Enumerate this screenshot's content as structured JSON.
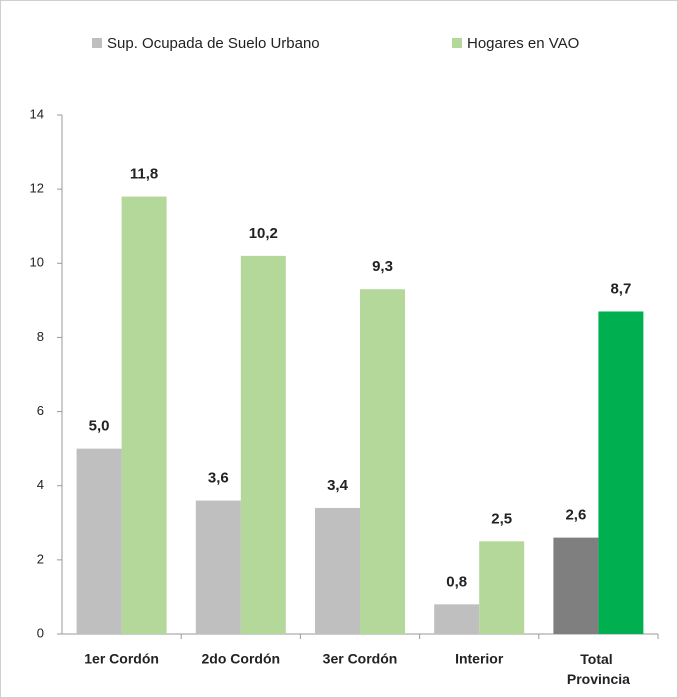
{
  "chart_data": {
    "type": "bar",
    "categories": [
      "1er Cordón",
      "2do Cordón",
      "3er Cordón",
      "Interior",
      "Total Provincia"
    ],
    "series": [
      {
        "name": "Sup. Ocupada de Suelo Urbano",
        "color": "#bfbfbf",
        "colors": [
          "#bfbfbf",
          "#bfbfbf",
          "#bfbfbf",
          "#bfbfbf",
          "#7f7f7f"
        ],
        "values": [
          5.0,
          3.6,
          3.4,
          0.8,
          2.6
        ],
        "value_labels": [
          "5,0",
          "3,6",
          "3,4",
          "0,8",
          "2,6"
        ]
      },
      {
        "name": "Hogares en VAO",
        "color": "#b3d89a",
        "colors": [
          "#b3d89a",
          "#b3d89a",
          "#b3d89a",
          "#b3d89a",
          "#00b050"
        ],
        "values": [
          11.8,
          10.2,
          9.3,
          2.5,
          8.7
        ],
        "value_labels": [
          "11,8",
          "10,2",
          "9,3",
          "2,5",
          "8,7"
        ]
      }
    ],
    "ylim": [
      0,
      14
    ],
    "yticks": [
      0,
      2,
      4,
      6,
      8,
      10,
      12,
      14
    ],
    "grid": false,
    "legend": "top"
  }
}
